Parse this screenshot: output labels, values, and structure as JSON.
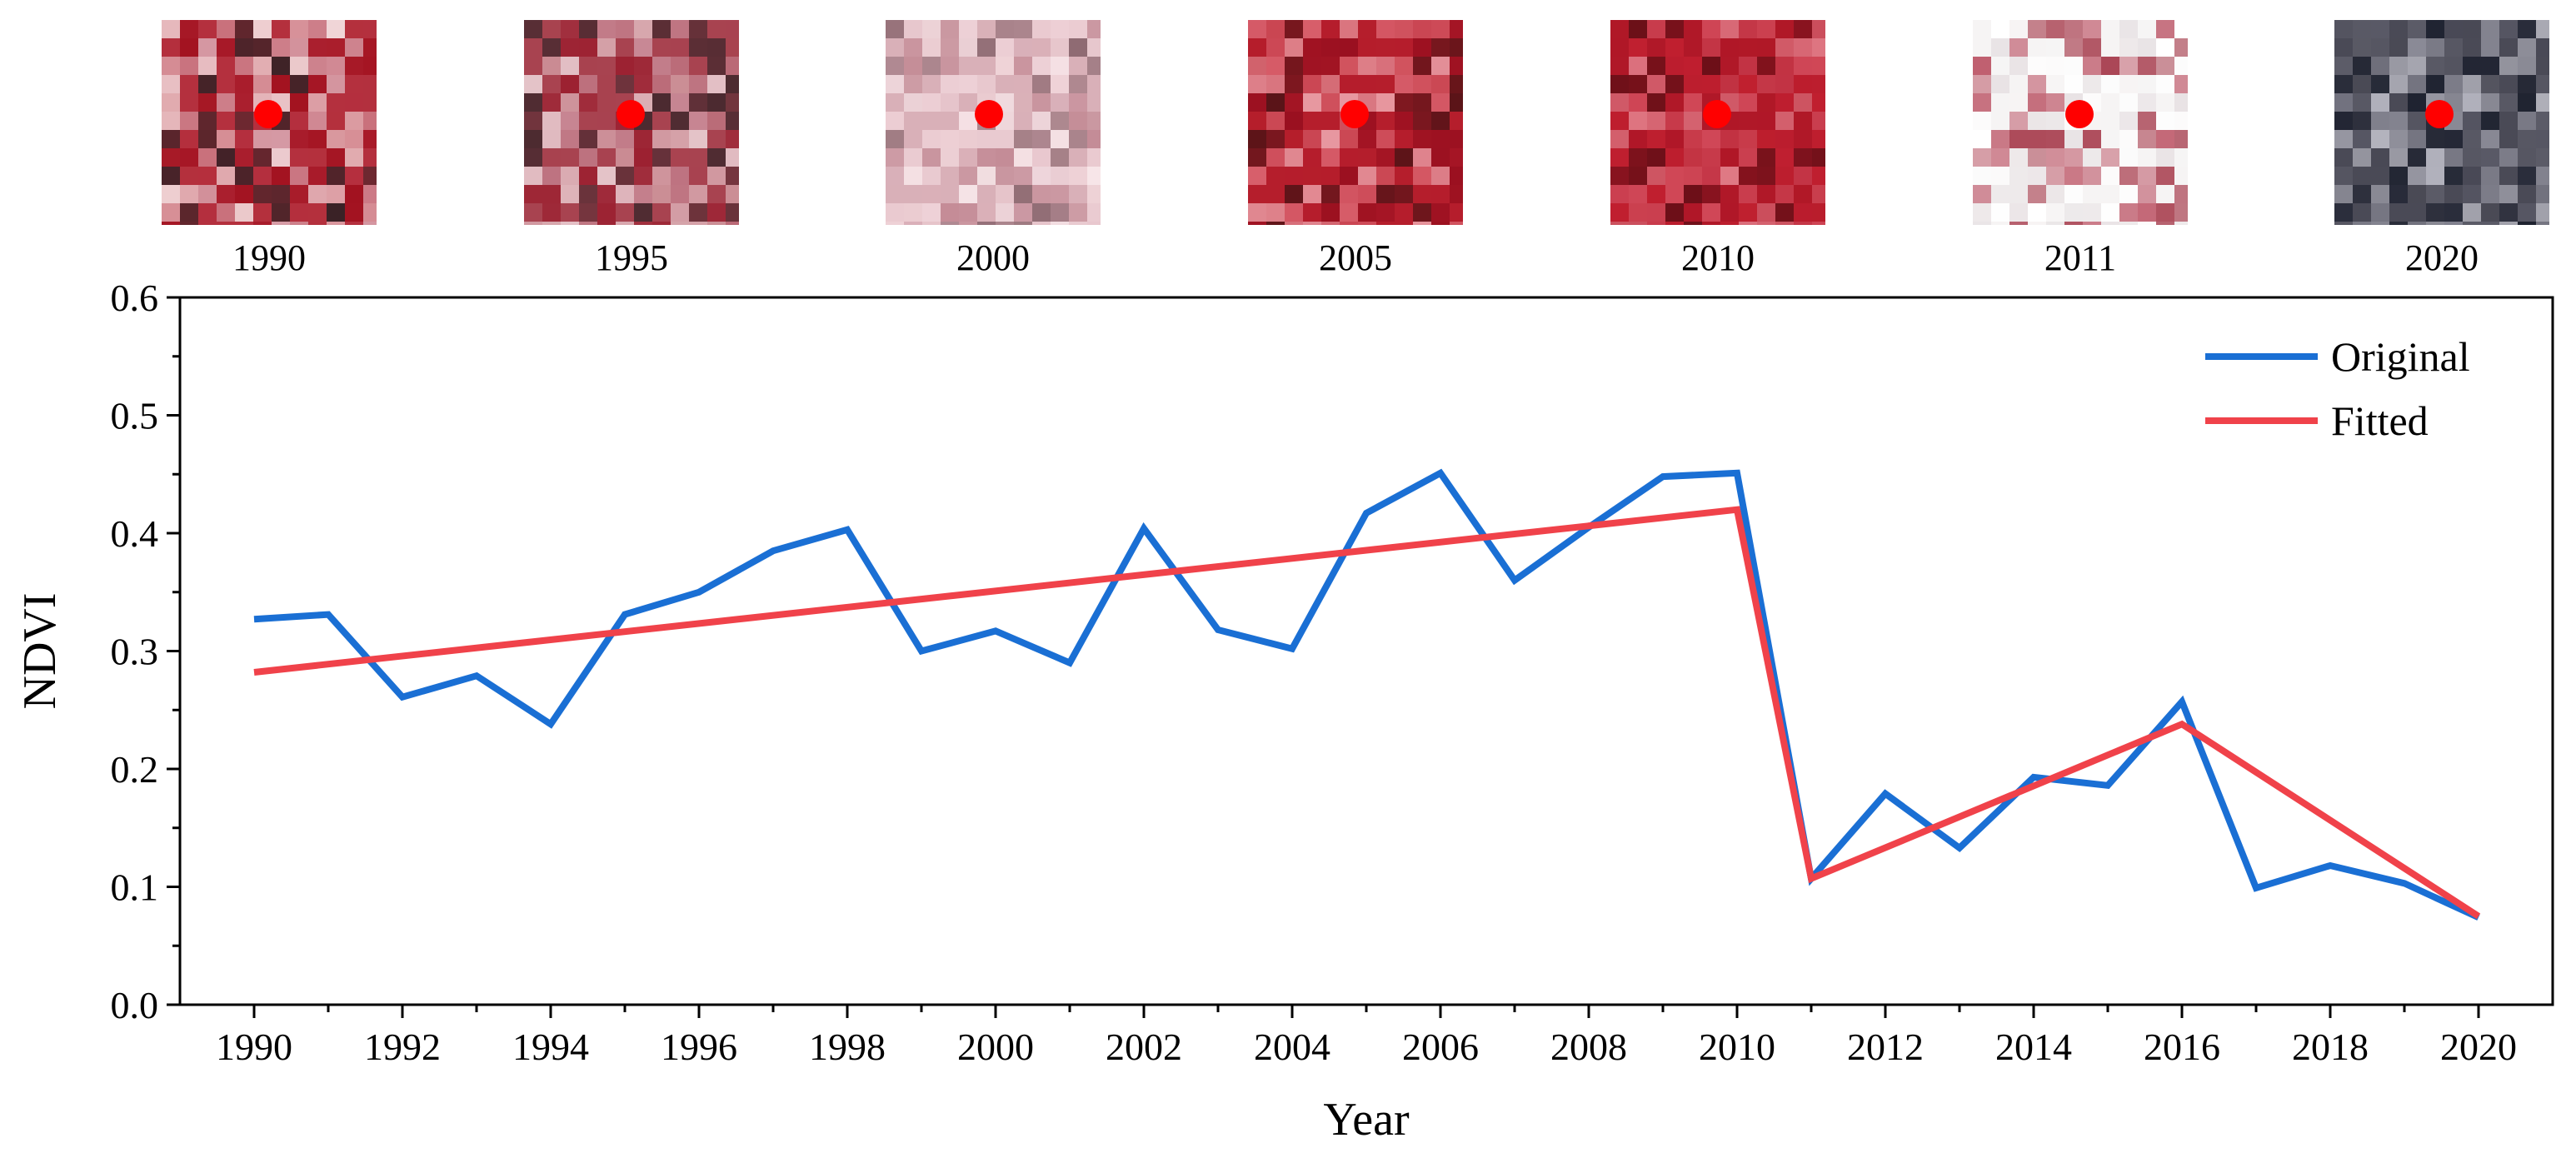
{
  "thumbnails": [
    {
      "year": "1990",
      "palette": [
        "#b4303e",
        "#d8a3ad",
        "#3a2226",
        "#f1d8da",
        "#a21220"
      ]
    },
    {
      "year": "1995",
      "palette": [
        "#a84350",
        "#c88996",
        "#4a2a30",
        "#e6c6cb",
        "#9b2030"
      ]
    },
    {
      "year": "2000",
      "palette": [
        "#d9b0b8",
        "#efd3d8",
        "#8e6a72",
        "#f7e6e9",
        "#c48c97"
      ]
    },
    {
      "year": "2005",
      "palette": [
        "#b51e2c",
        "#d8606c",
        "#5a1418",
        "#e89aa2",
        "#9a1020"
      ]
    },
    {
      "year": "2010",
      "palette": [
        "#b01828",
        "#d04858",
        "#6a1018",
        "#e07a86",
        "#c02030"
      ]
    },
    {
      "year": "2011",
      "palette": [
        "#f6f4f4",
        "#e8e2e4",
        "#c06070",
        "#ffffff",
        "#a84050"
      ]
    },
    {
      "year": "2020",
      "palette": [
        "#4a4a56",
        "#8a8a96",
        "#1e2230",
        "#b4b4be",
        "#5c5c68"
      ]
    }
  ],
  "chart_data": {
    "type": "line",
    "title": "",
    "xlabel": "Year",
    "ylabel": "NDVI",
    "xlim": [
      1989,
      2021
    ],
    "ylim": [
      0.0,
      0.6
    ],
    "x_ticks": [
      "1990",
      "1992",
      "1994",
      "1996",
      "1998",
      "2000",
      "2002",
      "2004",
      "2006",
      "2008",
      "2010",
      "2012",
      "2014",
      "2016",
      "2018",
      "2020"
    ],
    "y_ticks": [
      "0.0",
      "0.1",
      "0.2",
      "0.3",
      "0.4",
      "0.5",
      "0.6"
    ],
    "legend_position": "top-right",
    "series": [
      {
        "name": "Original",
        "color": "#1a6fd4",
        "x": [
          1990,
          1991,
          1992,
          1993,
          1994,
          1995,
          1996,
          1997,
          1998,
          1999,
          2000,
          2001,
          2002,
          2003,
          2004,
          2005,
          2006,
          2007,
          2008,
          2009,
          2010,
          2011,
          2012,
          2013,
          2014,
          2015,
          2016,
          2017,
          2018,
          2019,
          2020
        ],
        "values": [
          0.327,
          0.331,
          0.261,
          0.279,
          0.238,
          0.331,
          0.35,
          0.385,
          0.403,
          0.3,
          0.317,
          0.29,
          0.404,
          0.318,
          0.302,
          0.417,
          0.451,
          0.36,
          0.405,
          0.448,
          0.451,
          0.107,
          0.179,
          0.133,
          0.193,
          0.186,
          0.257,
          0.099,
          0.118,
          0.103,
          0.074
        ]
      },
      {
        "name": "Fitted",
        "color": "#f0424a",
        "x": [
          1990,
          2010,
          2011,
          2016,
          2020
        ],
        "values": [
          0.282,
          0.42,
          0.107,
          0.238,
          0.075
        ]
      }
    ]
  }
}
